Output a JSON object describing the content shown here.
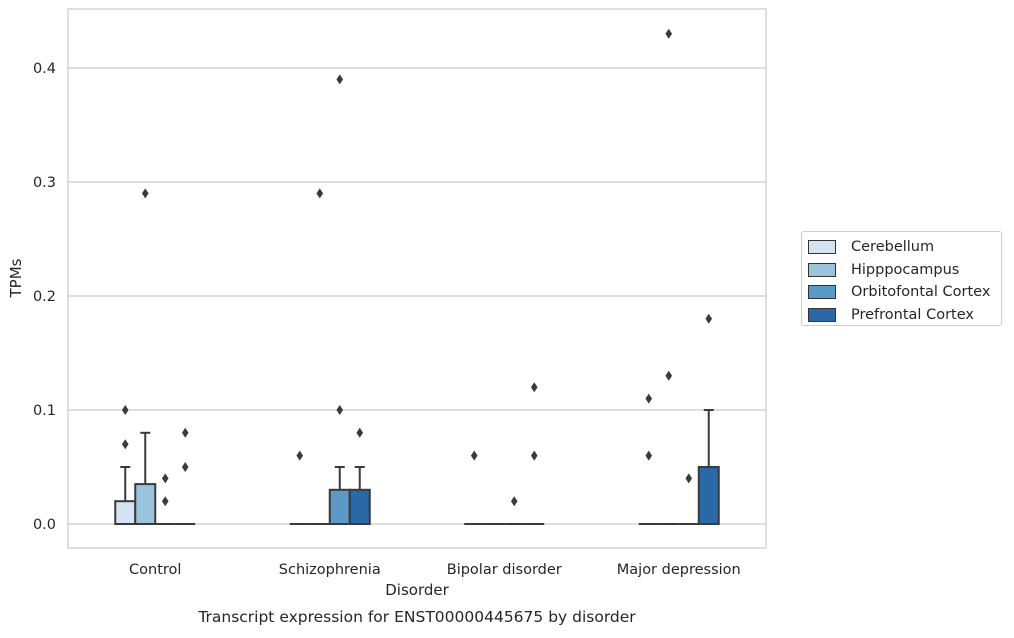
{
  "chart_data": {
    "type": "box",
    "title": "Transcript expression for ENST00000445675 by disorder",
    "xlabel": "Disorder",
    "ylabel": "TPMs",
    "ylim": [
      -0.021,
      0.455
    ],
    "yticks": [
      "0.0",
      "0.1",
      "0.2",
      "0.3",
      "0.4"
    ],
    "grid": "horizontal",
    "legend_position": "right",
    "categories": [
      "Control",
      "Schizophrenia",
      "Bipolar disorder",
      "Major depression"
    ],
    "series": [
      {
        "name": "Cerebellum",
        "color": "#d4e3f1",
        "boxes": [
          {
            "q1": 0.0,
            "median": 0.0,
            "q3": 0.02,
            "whisker_low": 0.0,
            "whisker_high": 0.05,
            "outliers": [
              0.07,
              0.1
            ]
          },
          {
            "q1": 0.0,
            "median": 0.0,
            "q3": 0.0,
            "whisker_low": 0.0,
            "whisker_high": 0.0,
            "outliers": [
              0.06
            ]
          },
          {
            "q1": 0.0,
            "median": 0.0,
            "q3": 0.0,
            "whisker_low": 0.0,
            "whisker_high": 0.0,
            "outliers": [
              0.06
            ]
          },
          {
            "q1": 0.0,
            "median": 0.0,
            "q3": 0.0,
            "whisker_low": 0.0,
            "whisker_high": 0.0,
            "outliers": [
              0.06,
              0.11
            ]
          }
        ]
      },
      {
        "name": "Hipppocampus",
        "color": "#9ac4de",
        "boxes": [
          {
            "q1": 0.0,
            "median": 0.0,
            "q3": 0.035,
            "whisker_low": 0.0,
            "whisker_high": 0.08,
            "outliers": [
              0.29
            ]
          },
          {
            "q1": 0.0,
            "median": 0.0,
            "q3": 0.0,
            "whisker_low": 0.0,
            "whisker_high": 0.0,
            "outliers": [
              0.29
            ]
          },
          {
            "q1": 0.0,
            "median": 0.0,
            "q3": 0.0,
            "whisker_low": 0.0,
            "whisker_high": 0.0,
            "outliers": []
          },
          {
            "q1": 0.0,
            "median": 0.0,
            "q3": 0.0,
            "whisker_low": 0.0,
            "whisker_high": 0.0,
            "outliers": [
              0.13,
              0.43
            ]
          }
        ]
      },
      {
        "name": "Orbitofontal Cortex",
        "color": "#5b9ac7",
        "boxes": [
          {
            "q1": 0.0,
            "median": 0.0,
            "q3": 0.0,
            "whisker_low": 0.0,
            "whisker_high": 0.0,
            "outliers": [
              0.02,
              0.04
            ]
          },
          {
            "q1": 0.0,
            "median": 0.0,
            "q3": 0.03,
            "whisker_low": 0.0,
            "whisker_high": 0.05,
            "outliers": [
              0.1,
              0.39
            ]
          },
          {
            "q1": 0.0,
            "median": 0.0,
            "q3": 0.0,
            "whisker_low": 0.0,
            "whisker_high": 0.0,
            "outliers": [
              0.02
            ]
          },
          {
            "q1": 0.0,
            "median": 0.0,
            "q3": 0.0,
            "whisker_low": 0.0,
            "whisker_high": 0.0,
            "outliers": [
              0.04
            ]
          }
        ]
      },
      {
        "name": "Prefrontal Cortex",
        "color": "#2a69a8",
        "boxes": [
          {
            "q1": 0.0,
            "median": 0.0,
            "q3": 0.0,
            "whisker_low": 0.0,
            "whisker_high": 0.0,
            "outliers": [
              0.05,
              0.08
            ]
          },
          {
            "q1": 0.0,
            "median": 0.0,
            "q3": 0.03,
            "whisker_low": 0.0,
            "whisker_high": 0.05,
            "outliers": [
              0.08
            ]
          },
          {
            "q1": 0.0,
            "median": 0.0,
            "q3": 0.0,
            "whisker_low": 0.0,
            "whisker_high": 0.0,
            "outliers": [
              0.06,
              0.12
            ]
          },
          {
            "q1": 0.0,
            "median": 0.0,
            "q3": 0.05,
            "whisker_low": 0.0,
            "whisker_high": 0.1,
            "outliers": [
              0.18
            ]
          }
        ]
      }
    ]
  }
}
